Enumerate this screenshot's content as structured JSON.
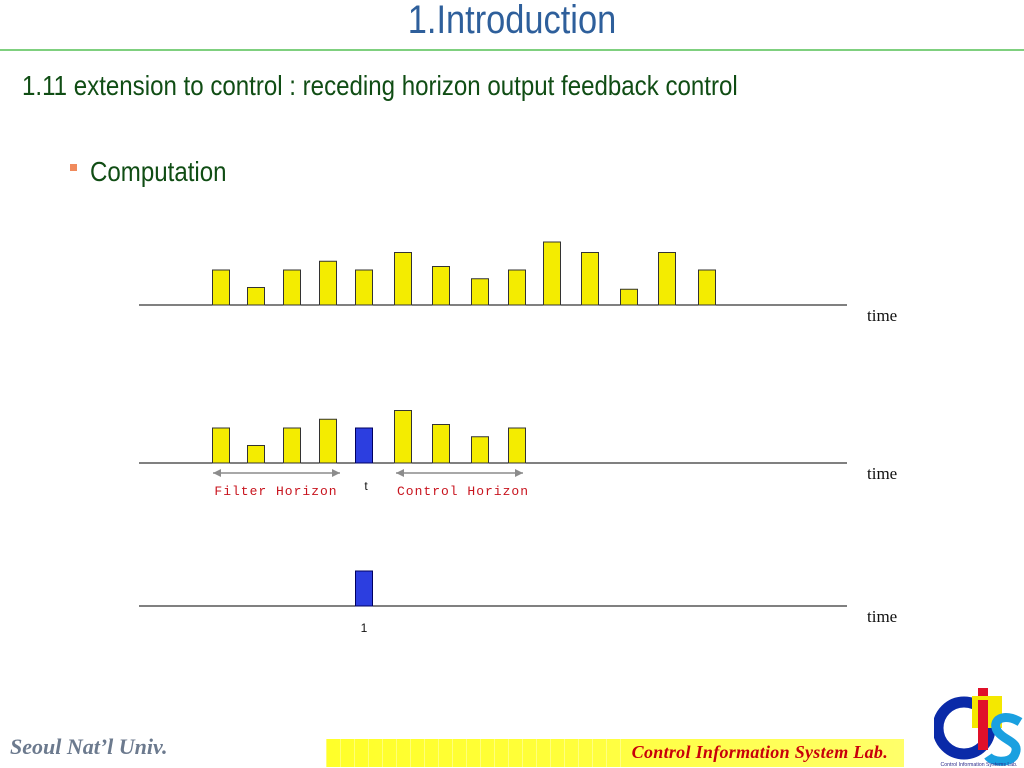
{
  "title": "1.Introduction",
  "subtitle": "1.11 extension to control : receding horizon output feedback control",
  "bullet": "Computation",
  "diagram": {
    "time_label": "time",
    "filter_horizon_label": "Filter Horizon",
    "control_horizon_label": "Control Horizon",
    "t_label": "t",
    "one_label": "1",
    "colors": {
      "bar_yellow": "#f4ec00",
      "bar_blue": "#2c3ee0",
      "label_red": "#c8141e",
      "arrow_gray": "#8c8c8c"
    },
    "row1_heights": [
      2,
      1,
      2,
      2.5,
      2,
      3,
      2.2,
      1.5,
      2,
      3.6,
      3,
      0.9,
      3,
      2
    ],
    "row2_heights": [
      2,
      1,
      2,
      2.5,
      2,
      3,
      2.2,
      1.5,
      2
    ],
    "row2_blue_index": 4,
    "row3_blue_height": 2
  },
  "footer": {
    "university": "Seoul Nat’l Univ.",
    "lab": "Control  Information  System  Lab.",
    "logo_text": "Control Information Systems Lab."
  }
}
